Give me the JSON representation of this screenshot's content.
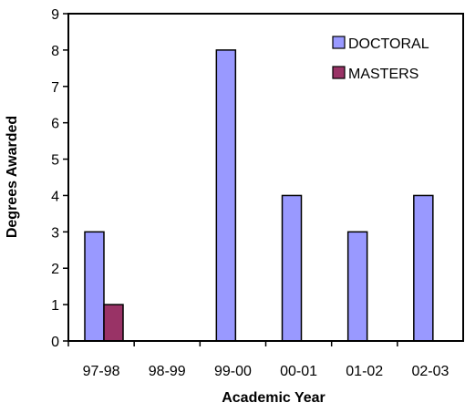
{
  "chart_data": {
    "type": "bar",
    "title": "",
    "xlabel": "Academic Year",
    "ylabel": "Degrees Awarded",
    "categories": [
      "97-98",
      "98-99",
      "99-00",
      "00-01",
      "01-02",
      "02-03"
    ],
    "series": [
      {
        "name": "DOCTORAL",
        "color": "#9999ff",
        "values": [
          3,
          0,
          8,
          4,
          3,
          4
        ]
      },
      {
        "name": "MASTERS",
        "color": "#993366",
        "values": [
          1,
          0,
          0,
          0,
          0,
          0
        ]
      }
    ],
    "ylim": [
      0,
      9
    ],
    "yticks": [
      0,
      1,
      2,
      3,
      4,
      5,
      6,
      7,
      8,
      9
    ],
    "grid": false,
    "legend_position": "top-right"
  }
}
